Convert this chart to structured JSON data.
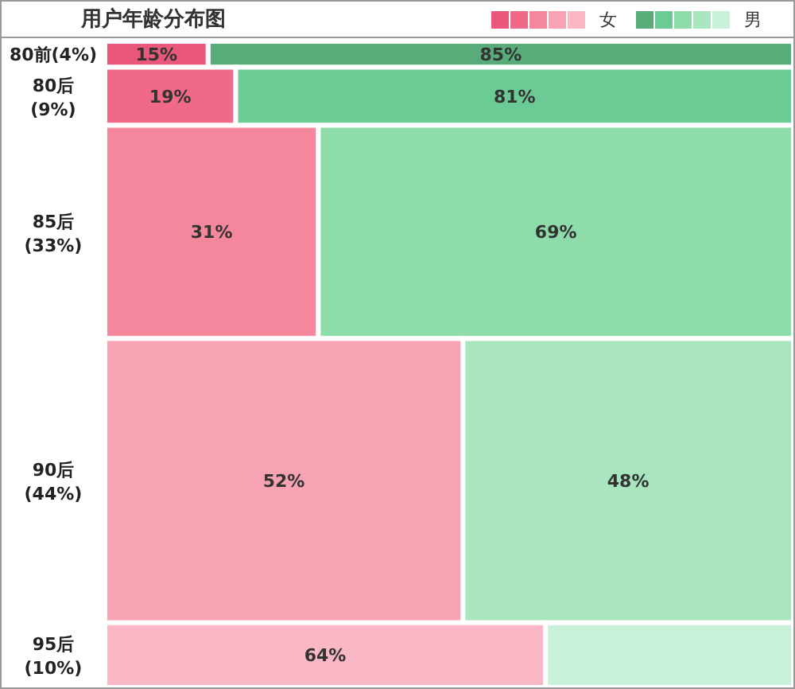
{
  "chart_data": {
    "type": "other",
    "title": "用户年龄分布图",
    "categories": [
      "80前",
      "80后",
      "85后",
      "90后",
      "95后"
    ],
    "values": [
      4,
      9,
      33,
      44,
      10
    ],
    "value_labels": [
      "(4%)",
      "(9%)",
      "(33%)",
      "(44%)",
      "(10%)"
    ],
    "legend": "top right",
    "series": [
      {
        "name": "女",
        "colors": [
          "#e9587a",
          "#f06a88",
          "#f5879d",
          "#f8a3b4",
          "#fab8c6"
        ],
        "values": [
          15,
          19,
          31,
          52,
          64
        ],
        "value_labels": [
          "15%",
          "19%",
          "31%",
          "52%",
          "64%"
        ]
      },
      {
        "name": "男",
        "colors": [
          "#5aab7a",
          "#6ccb94",
          "#8ddcaa",
          "#a9e6c0",
          "#c9f0d9"
        ],
        "values": [
          85,
          81,
          69,
          48,
          null
        ],
        "value_labels": [
          "85%",
          "81%",
          "69%",
          "48%",
          null
        ]
      }
    ]
  }
}
